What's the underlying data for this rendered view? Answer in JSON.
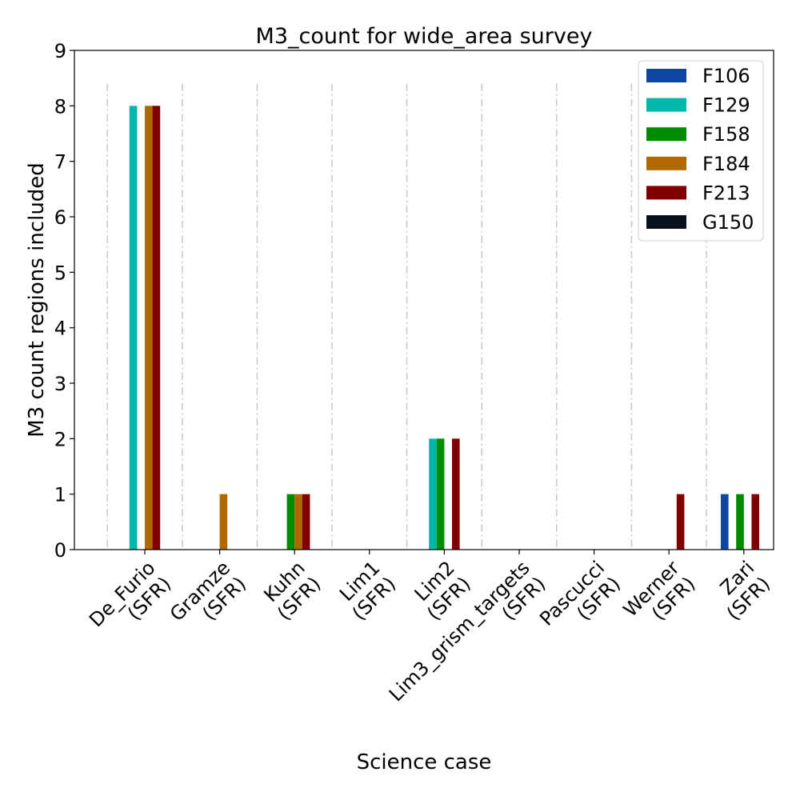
{
  "chart_data": {
    "type": "bar",
    "title": "M3_count for wide_area survey",
    "xlabel": "Science case",
    "ylabel": "M3 count regions included",
    "ylim": [
      0,
      9
    ],
    "yticks": [
      0,
      1,
      2,
      3,
      4,
      5,
      6,
      7,
      8,
      9
    ],
    "grid": "vertical dash-dot separators between categories",
    "legend_position": "top-right",
    "categories": [
      [
        "De_Furio",
        "(SFR)"
      ],
      [
        "Gramze",
        "(SFR)"
      ],
      [
        "Kuhn",
        "(SFR)"
      ],
      [
        "Lim1",
        "(SFR)"
      ],
      [
        "Lim2",
        "(SFR)"
      ],
      [
        "Lim3_grism_targets",
        "(SFR)"
      ],
      [
        "Pascucci",
        "(SFR)"
      ],
      [
        "Werner",
        "(SFR)"
      ],
      [
        "Zari",
        "(SFR)"
      ]
    ],
    "series": [
      {
        "name": "F106",
        "color": "#0d47a1",
        "values": [
          0,
          0,
          0,
          0,
          0,
          0,
          0,
          0,
          1
        ]
      },
      {
        "name": "F129",
        "color": "#00b8a9",
        "values": [
          8,
          0,
          0,
          0,
          2,
          0,
          0,
          0,
          0
        ]
      },
      {
        "name": "F158",
        "color": "#008c00",
        "values": [
          0,
          0,
          1,
          0,
          2,
          0,
          0,
          0,
          1
        ]
      },
      {
        "name": "F184",
        "color": "#b06800",
        "values": [
          8,
          1,
          1,
          0,
          0,
          0,
          0,
          0,
          0
        ]
      },
      {
        "name": "F213",
        "color": "#800000",
        "values": [
          8,
          0,
          1,
          0,
          2,
          0,
          0,
          1,
          1
        ]
      },
      {
        "name": "G150",
        "color": "#0a111c",
        "values": [
          0,
          0,
          0,
          0,
          0,
          0,
          0,
          0,
          0
        ]
      }
    ]
  }
}
